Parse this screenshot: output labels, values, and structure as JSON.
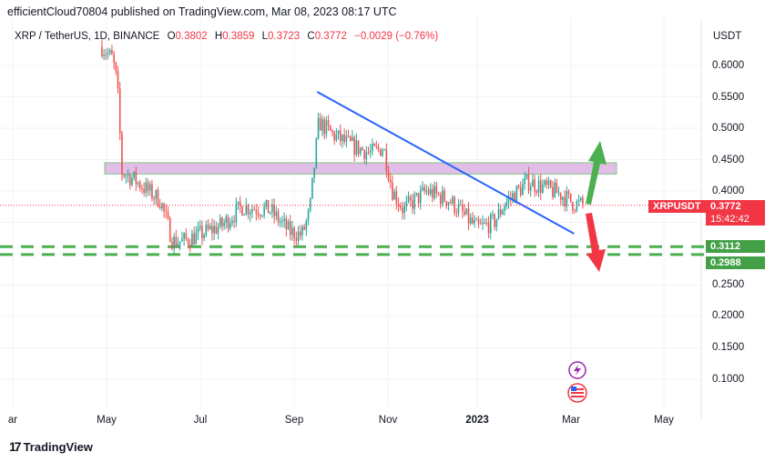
{
  "header": {
    "published": "efficientCloud70804 published on TradingView.com, Mar 08, 2023 08:17 UTC"
  },
  "legend": {
    "symbol": "XRP / TetherUS, 1D, BINANCE",
    "open_label": "O",
    "open": "0.3802",
    "high_label": "H",
    "high": "0.3859",
    "low_label": "L",
    "low": "0.3723",
    "close_label": "C",
    "close": "0.3772",
    "change": "−0.0029 (−0.76%)"
  },
  "price_axis": {
    "unit": "USDT",
    "ticks": [
      "0.6000",
      "0.5500",
      "0.5000",
      "0.4500",
      "0.4000",
      "0.2500",
      "0.2000",
      "0.1500",
      "0.1000"
    ]
  },
  "badges": {
    "symbol": "XRPUSDT",
    "last_price": "0.3772",
    "countdown": "15:42:42",
    "support_upper": "0.3112",
    "support_lower": "0.2988"
  },
  "colors": {
    "up": "#26a69a",
    "down": "#ef5350",
    "trendline": "#2962ff",
    "zone_fill": "#e1bee7",
    "zone_border": "#81c784",
    "support": "#4caf50",
    "badge_red": "#f23645",
    "arrow_up": "#4caf50",
    "arrow_down": "#f23645"
  },
  "footer": {
    "brand": "TradingView"
  },
  "chart_data": {
    "type": "candlestick",
    "symbol": "XRP / TetherUS",
    "interval": "1D",
    "exchange": "BINANCE",
    "x_ticks": [
      "ar",
      "May",
      "Jul",
      "Sep",
      "Nov",
      "2023",
      "Mar",
      "May"
    ],
    "ylim": [
      0.06,
      0.64
    ],
    "grid": true,
    "horizontal_levels": [
      0.3112,
      0.2988
    ],
    "resistance_zone": [
      0.427,
      0.445
    ],
    "last_price": 0.3772,
    "trendline": {
      "start": [
        "2022-09-15",
        0.558
      ],
      "end": [
        "2023-03-01",
        0.332
      ]
    },
    "anchor_path": [
      [
        "2022-04-28",
        0.63
      ],
      [
        "2022-05-05",
        0.61
      ],
      [
        "2022-05-08",
        0.57
      ],
      [
        "2022-05-11",
        0.43
      ],
      [
        "2022-05-18",
        0.42
      ],
      [
        "2022-05-28",
        0.4
      ],
      [
        "2022-06-05",
        0.385
      ],
      [
        "2022-06-13",
        0.32
      ],
      [
        "2022-06-20",
        0.32
      ],
      [
        "2022-06-30",
        0.33
      ],
      [
        "2022-07-15",
        0.345
      ],
      [
        "2022-07-28",
        0.375
      ],
      [
        "2022-08-15",
        0.37
      ],
      [
        "2022-08-28",
        0.335
      ],
      [
        "2022-09-05",
        0.33
      ],
      [
        "2022-09-10",
        0.365
      ],
      [
        "2022-09-16",
        0.51
      ],
      [
        "2022-09-25",
        0.49
      ],
      [
        "2022-10-05",
        0.475
      ],
      [
        "2022-10-20",
        0.46
      ],
      [
        "2022-10-28",
        0.47
      ],
      [
        "2022-11-03",
        0.4
      ],
      [
        "2022-11-10",
        0.37
      ],
      [
        "2022-11-25",
        0.4
      ],
      [
        "2022-12-10",
        0.385
      ],
      [
        "2022-12-28",
        0.34
      ],
      [
        "2023-01-08",
        0.35
      ],
      [
        "2023-01-15",
        0.38
      ],
      [
        "2023-01-30",
        0.415
      ],
      [
        "2023-02-10",
        0.405
      ],
      [
        "2023-02-20",
        0.395
      ],
      [
        "2023-03-01",
        0.38
      ],
      [
        "2023-03-08",
        0.377
      ]
    ]
  }
}
